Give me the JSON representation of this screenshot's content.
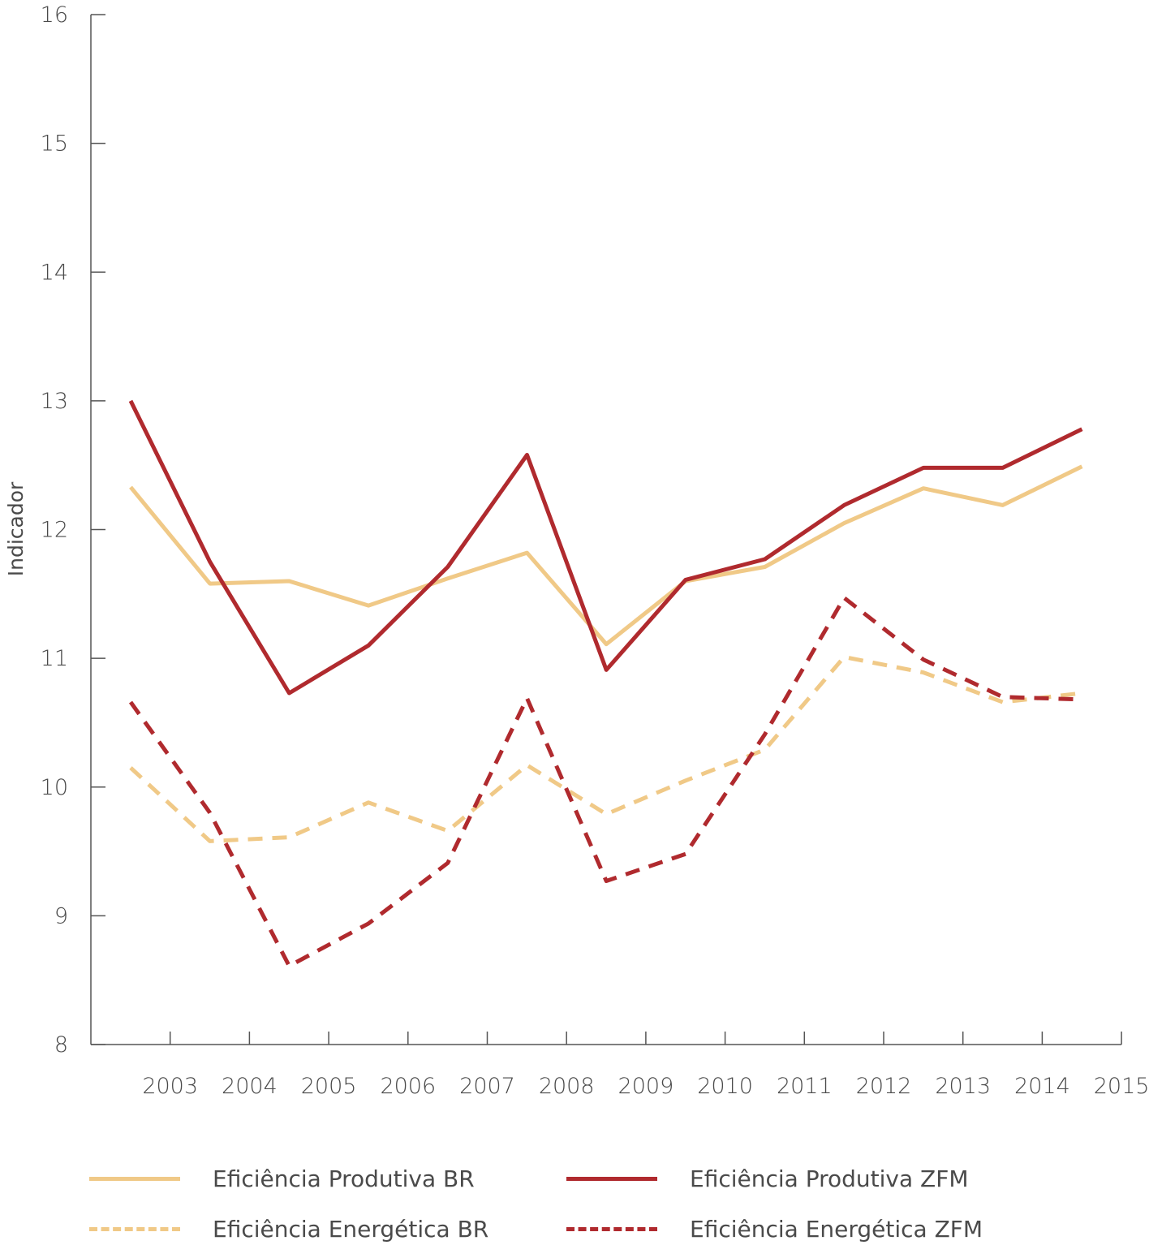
{
  "chart_data": {
    "type": "line",
    "ylabel": "Indicador",
    "ylim": [
      8,
      16
    ],
    "yticks": [
      "8",
      "9",
      "10",
      "11",
      "12",
      "13",
      "14",
      "15",
      "16"
    ],
    "x_tick_labels": [
      "2003",
      "2004",
      "2005",
      "2006",
      "2007",
      "2008",
      "2009",
      "2010",
      "2011",
      "2012",
      "2013",
      "2014",
      "2015"
    ],
    "grid": false,
    "legend_position": "bottom",
    "series": [
      {
        "name": "Eficiência Produtiva BR",
        "color": "#f0c987",
        "style": "solid",
        "values": [
          12.33,
          11.58,
          11.6,
          11.41,
          11.62,
          11.82,
          11.11,
          11.6,
          11.71,
          12.05,
          12.32,
          12.19,
          12.49
        ]
      },
      {
        "name": "Eficiência Produtiva ZFM",
        "color": "#b02a2e",
        "style": "solid",
        "values": [
          13.0,
          11.75,
          10.73,
          11.1,
          11.71,
          12.58,
          10.91,
          11.61,
          11.77,
          12.19,
          12.48,
          12.48,
          12.78
        ]
      },
      {
        "name": "Eficiência Energética BR",
        "color": "#f0c987",
        "style": "dashed",
        "values": [
          10.15,
          9.58,
          9.61,
          9.88,
          9.66,
          10.17,
          9.79,
          10.05,
          10.29,
          11.01,
          10.89,
          10.66,
          10.73
        ]
      },
      {
        "name": "Eficiência Energética ZFM",
        "color": "#b02a2e",
        "style": "dashed",
        "values": [
          10.66,
          9.8,
          8.61,
          8.94,
          9.41,
          10.69,
          9.27,
          9.48,
          10.41,
          11.47,
          10.99,
          10.7,
          10.68
        ]
      }
    ]
  }
}
